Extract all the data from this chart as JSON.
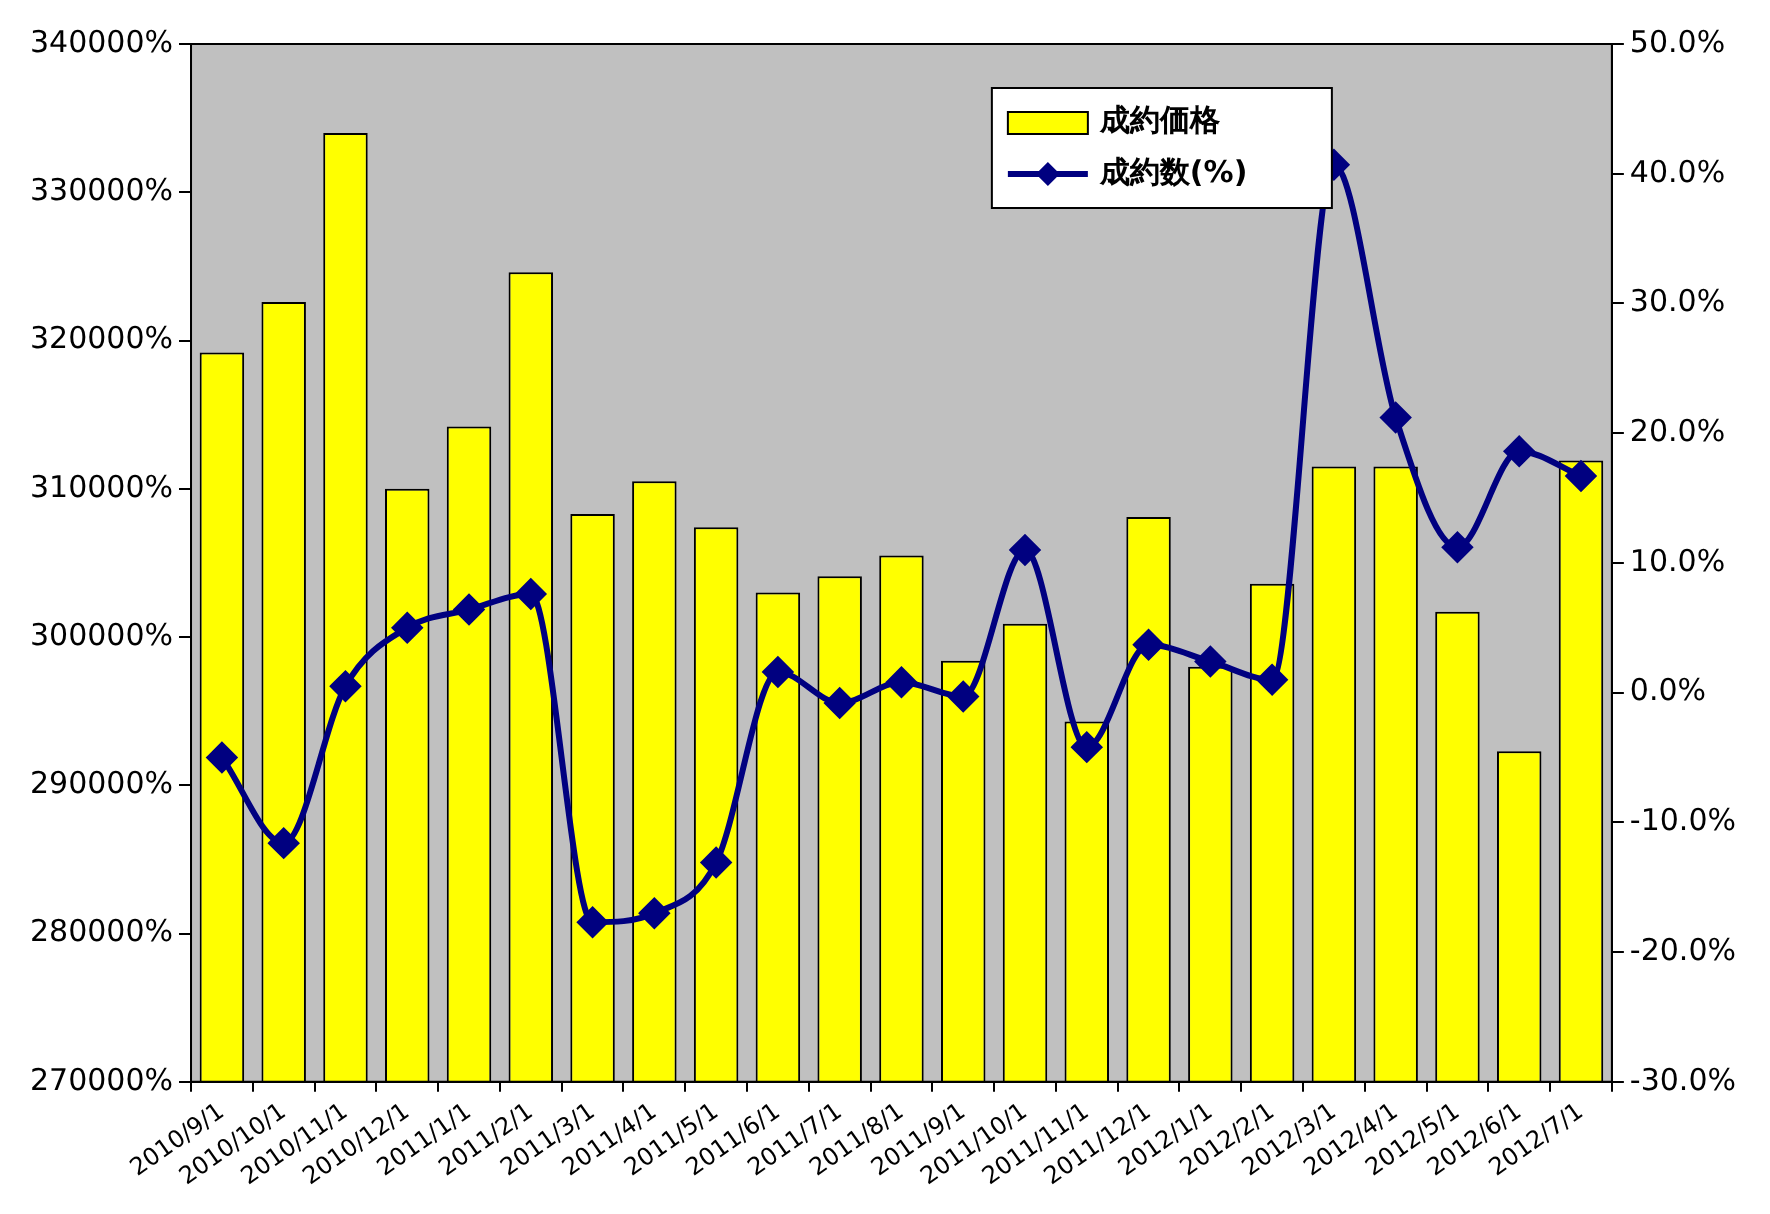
{
  "chart_data": {
    "type": "bar",
    "categories": [
      "2010/9/1",
      "2010/10/1",
      "2010/11/1",
      "2010/12/1",
      "2011/1/1",
      "2011/2/1",
      "2011/3/1",
      "2011/4/1",
      "2011/5/1",
      "2011/6/1",
      "2011/7/1",
      "2011/8/1",
      "2011/9/1",
      "2011/10/1",
      "2011/11/1",
      "2011/12/1",
      "2012/1/1",
      "2012/2/1",
      "2012/3/1",
      "2012/4/1",
      "2012/5/1",
      "2012/6/1",
      "2012/7/1"
    ],
    "series": [
      {
        "name": "成約価格",
        "color": "#ffff00",
        "values": [
          319200,
          322600,
          334000,
          310000,
          314200,
          324600,
          308300,
          310500,
          307400,
          303000,
          304100,
          305500,
          298400,
          300900,
          294300,
          308100,
          298000,
          303600,
          311500,
          311500,
          301700,
          292300,
          311900
        ]
      },
      {
        "name": "成約数(%)",
        "type": "line",
        "axis": "y2",
        "color": "#000080",
        "marker": "diamond",
        "values": [
          -5.0,
          -11.6,
          0.5,
          5.0,
          6.4,
          7.6,
          -17.7,
          -17.0,
          -13.1,
          1.6,
          -0.8,
          0.8,
          -0.3,
          11.0,
          -4.2,
          3.7,
          2.4,
          1.0,
          40.7,
          21.2,
          11.2,
          18.6,
          16.7
        ]
      }
    ],
    "ylim": [
      270000,
      340000
    ],
    "yticks": [
      {
        "value": 270000,
        "label": "270000%"
      },
      {
        "value": 280000,
        "label": "280000%"
      },
      {
        "value": 290000,
        "label": "290000%"
      },
      {
        "value": 300000,
        "label": "300000%"
      },
      {
        "value": 310000,
        "label": "310000%"
      },
      {
        "value": 320000,
        "label": "320000%"
      },
      {
        "value": 330000,
        "label": "330000%"
      },
      {
        "value": 340000,
        "label": "340000%"
      }
    ],
    "y2lim": [
      -30,
      50
    ],
    "y2ticks": [
      {
        "value": -30,
        "label": "-30.0%"
      },
      {
        "value": -20,
        "label": "-20.0%"
      },
      {
        "value": -10,
        "label": "-10.0%"
      },
      {
        "value": 0,
        "label": "0.0%"
      },
      {
        "value": 10,
        "label": "10.0%"
      },
      {
        "value": 20,
        "label": "20.0%"
      },
      {
        "value": 30,
        "label": "30.0%"
      },
      {
        "value": 40,
        "label": "40.0%"
      },
      {
        "value": 50,
        "label": "50.0%"
      }
    ],
    "grid": false,
    "legend": "top right"
  }
}
